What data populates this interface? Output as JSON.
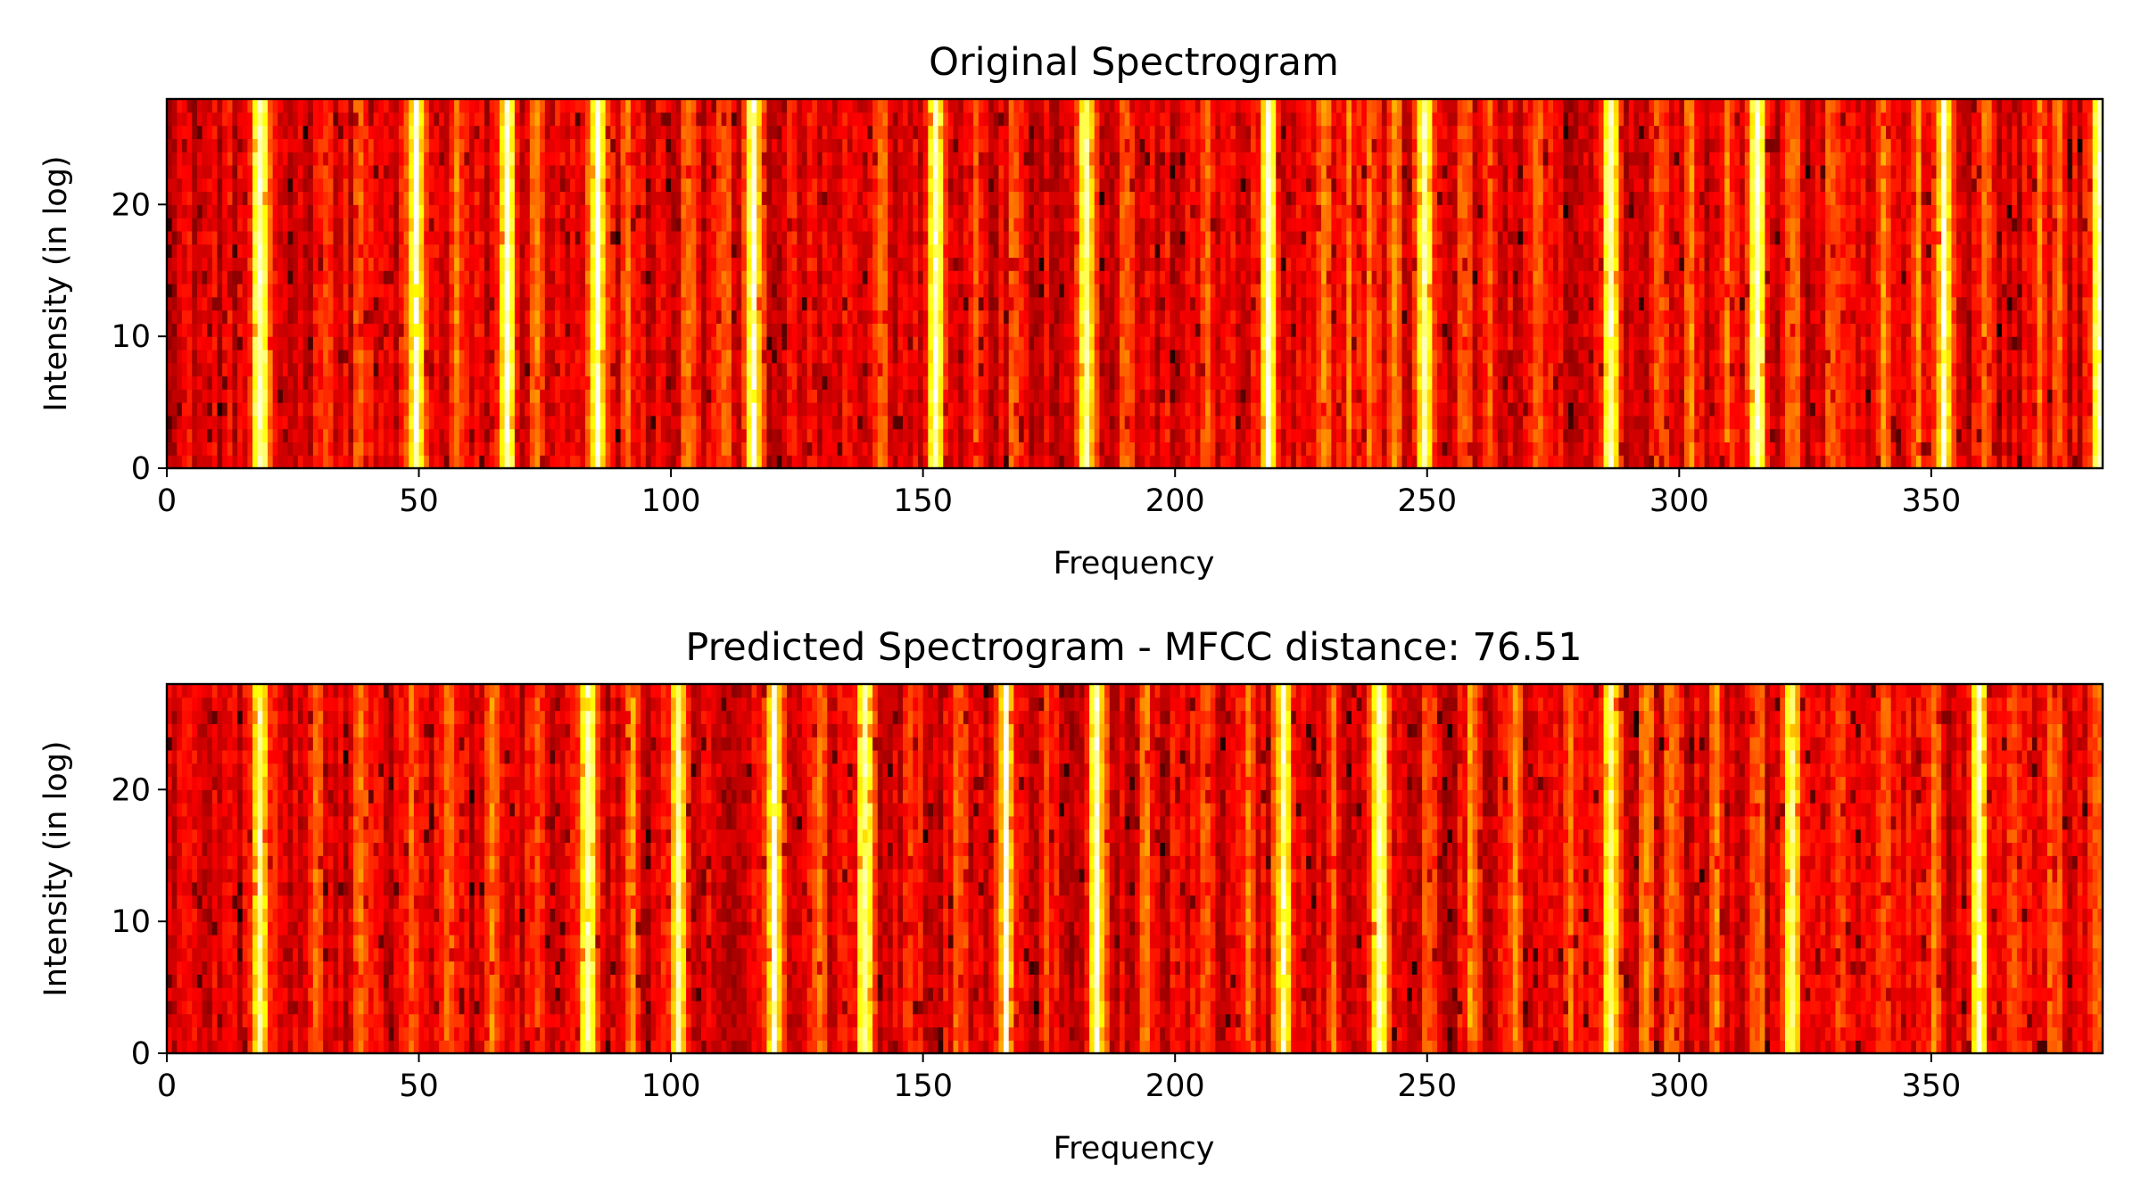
{
  "chart_data": [
    {
      "type": "heatmap",
      "title": "Original Spectrogram",
      "xlabel": "Frequency",
      "ylabel": "Intensity (in log)",
      "xlim": [
        0,
        384
      ],
      "ylim": [
        0,
        28
      ],
      "xticks": [
        0,
        50,
        100,
        150,
        200,
        250,
        300,
        350
      ],
      "yticks": [
        0,
        10,
        20
      ],
      "colormap": "hot",
      "n_bins": 384,
      "n_rows": 28,
      "peaks": [
        18,
        49,
        67,
        85,
        116,
        152,
        182,
        218,
        249,
        286,
        315,
        352,
        383
      ],
      "secondary_peaks": [
        31,
        38,
        57,
        73,
        91,
        103,
        110,
        141,
        160,
        168,
        190,
        206,
        229,
        234,
        238,
        243,
        257,
        262,
        272,
        296,
        302,
        309,
        322,
        330,
        340,
        347,
        360,
        371,
        375
      ]
    },
    {
      "type": "heatmap",
      "title": "Predicted Spectrogram - MFCC distance: 76.51",
      "xlabel": "Frequency",
      "ylabel": "Intensity (in log)",
      "xlim": [
        0,
        384
      ],
      "ylim": [
        0,
        28
      ],
      "xticks": [
        0,
        50,
        100,
        150,
        200,
        250,
        300,
        350
      ],
      "yticks": [
        0,
        10,
        20
      ],
      "colormap": "hot",
      "n_bins": 384,
      "n_rows": 28,
      "peaks": [
        18,
        83,
        101,
        120,
        138,
        166,
        184,
        221,
        240,
        286,
        322,
        359
      ],
      "secondary_peaks": [
        29,
        38,
        48,
        55,
        64,
        73,
        92,
        129,
        147,
        157,
        174,
        194,
        206,
        214,
        231,
        250,
        258,
        267,
        278,
        293,
        298,
        307,
        315,
        331,
        340,
        350,
        366,
        374,
        382
      ]
    }
  ]
}
